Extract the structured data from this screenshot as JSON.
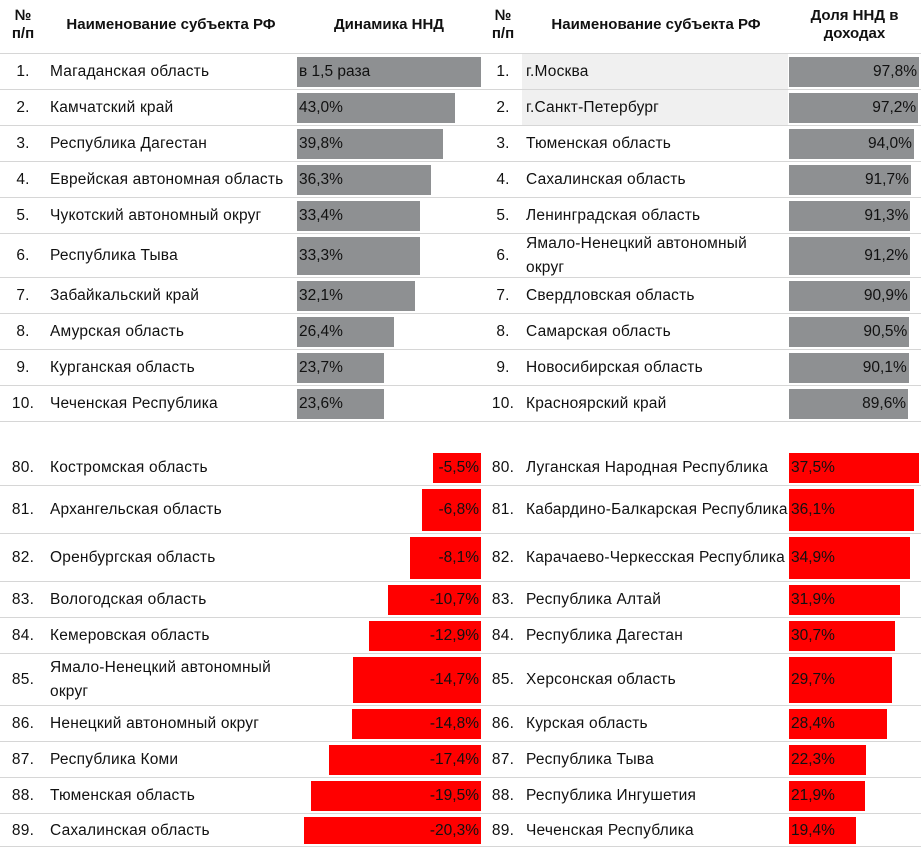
{
  "header": {
    "num": "№\nп/п",
    "name": "Наименование субъекта РФ",
    "left_metric": "Динамика ННД",
    "right_metric": "Доля ННД в\nдоходах"
  },
  "colors": {
    "gray_bar": "#8e9092",
    "red_bar": "#ff0000",
    "highlight": "#f0f0f0"
  },
  "top_left": [
    {
      "n": "1.",
      "name": "Магаданская область",
      "label": "в 1,5 раза",
      "value": 50.0
    },
    {
      "n": "2.",
      "name": "Камчатский край",
      "label": "43,0%",
      "value": 43.0
    },
    {
      "n": "3.",
      "name": "Республика Дагестан",
      "label": "39,8%",
      "value": 39.8
    },
    {
      "n": "4.",
      "name": "Еврейская автономная область",
      "label": "36,3%",
      "value": 36.3
    },
    {
      "n": "5.",
      "name": "Чукотский автономный округ",
      "label": "33,4%",
      "value": 33.4
    },
    {
      "n": "6.",
      "name": "Республика Тыва",
      "label": "33,3%",
      "value": 33.3
    },
    {
      "n": "7.",
      "name": "Забайкальский край",
      "label": "32,1%",
      "value": 32.1
    },
    {
      "n": "8.",
      "name": "Амурская область",
      "label": "26,4%",
      "value": 26.4
    },
    {
      "n": "9.",
      "name": "Курганская область",
      "label": "23,7%",
      "value": 23.7
    },
    {
      "n": "10.",
      "name": "Чеченская Республика",
      "label": "23,6%",
      "value": 23.6
    }
  ],
  "top_right": [
    {
      "n": "1.",
      "name": "г.Москва",
      "label": "97,8%",
      "value": 97.8,
      "highlight": true
    },
    {
      "n": "2.",
      "name": "г.Санкт-Петербург",
      "label": "97,2%",
      "value": 97.2,
      "highlight": true
    },
    {
      "n": "3.",
      "name": "Тюменская область",
      "label": "94,0%",
      "value": 94.0
    },
    {
      "n": "4.",
      "name": "Сахалинская область",
      "label": "91,7%",
      "value": 91.7
    },
    {
      "n": "5.",
      "name": "Ленинградская область",
      "label": "91,3%",
      "value": 91.3
    },
    {
      "n": "6.",
      "name": "Ямало-Ненецкий автономный округ",
      "label": "91,2%",
      "value": 91.2
    },
    {
      "n": "7.",
      "name": "Свердловская область",
      "label": "90,9%",
      "value": 90.9
    },
    {
      "n": "8.",
      "name": "Самарская область",
      "label": "90,5%",
      "value": 90.5
    },
    {
      "n": "9.",
      "name": "Новосибирская область",
      "label": "90,1%",
      "value": 90.1
    },
    {
      "n": "10.",
      "name": "Красноярский край",
      "label": "89,6%",
      "value": 89.6
    }
  ],
  "bottom_left": [
    {
      "n": "80.",
      "name": "Костромская область",
      "label": "-5,5%",
      "value": -5.5
    },
    {
      "n": "81.",
      "name": "Архангельская область",
      "label": "-6,8%",
      "value": -6.8
    },
    {
      "n": "82.",
      "name": "Оренбургская область",
      "label": "-8,1%",
      "value": -8.1
    },
    {
      "n": "83.",
      "name": "Вологодская область",
      "label": "-10,7%",
      "value": -10.7
    },
    {
      "n": "84.",
      "name": "Кемеровская область",
      "label": "-12,9%",
      "value": -12.9
    },
    {
      "n": "85.",
      "name": "Ямало-Ненецкий автономный округ",
      "label": "-14,7%",
      "value": -14.7
    },
    {
      "n": "86.",
      "name": "Ненецкий автономный округ",
      "label": "-14,8%",
      "value": -14.8
    },
    {
      "n": "87.",
      "name": "Республика Коми",
      "label": "-17,4%",
      "value": -17.4
    },
    {
      "n": "88.",
      "name": "Тюменская область",
      "label": "-19,5%",
      "value": -19.5
    },
    {
      "n": "89.",
      "name": "Сахалинская область",
      "label": "-20,3%",
      "value": -20.3
    }
  ],
  "bottom_right": [
    {
      "n": "80.",
      "name": "Луганская Народная Республика",
      "label": "37,5%",
      "value": 37.5
    },
    {
      "n": "81.",
      "name": "Кабардино-Балкарская Республика",
      "label": "36,1%",
      "value": 36.1
    },
    {
      "n": "82.",
      "name": "Карачаево-Черкесская Республика",
      "label": "34,9%",
      "value": 34.9
    },
    {
      "n": "83.",
      "name": "Республика Алтай",
      "label": "31,9%",
      "value": 31.9
    },
    {
      "n": "84.",
      "name": "Республика Дагестан",
      "label": "30,7%",
      "value": 30.7
    },
    {
      "n": "85.",
      "name": "Херсонская область",
      "label": "29,7%",
      "value": 29.7
    },
    {
      "n": "86.",
      "name": "Курская область",
      "label": "28,4%",
      "value": 28.4
    },
    {
      "n": "87.",
      "name": "Республика Тыва",
      "label": "22,3%",
      "value": 22.3
    },
    {
      "n": "88.",
      "name": "Республика Ингушетия",
      "label": "21,9%",
      "value": 21.9
    },
    {
      "n": "89.",
      "name": "Чеченская Республика",
      "label": "19,4%",
      "value": 19.4
    }
  ]
}
